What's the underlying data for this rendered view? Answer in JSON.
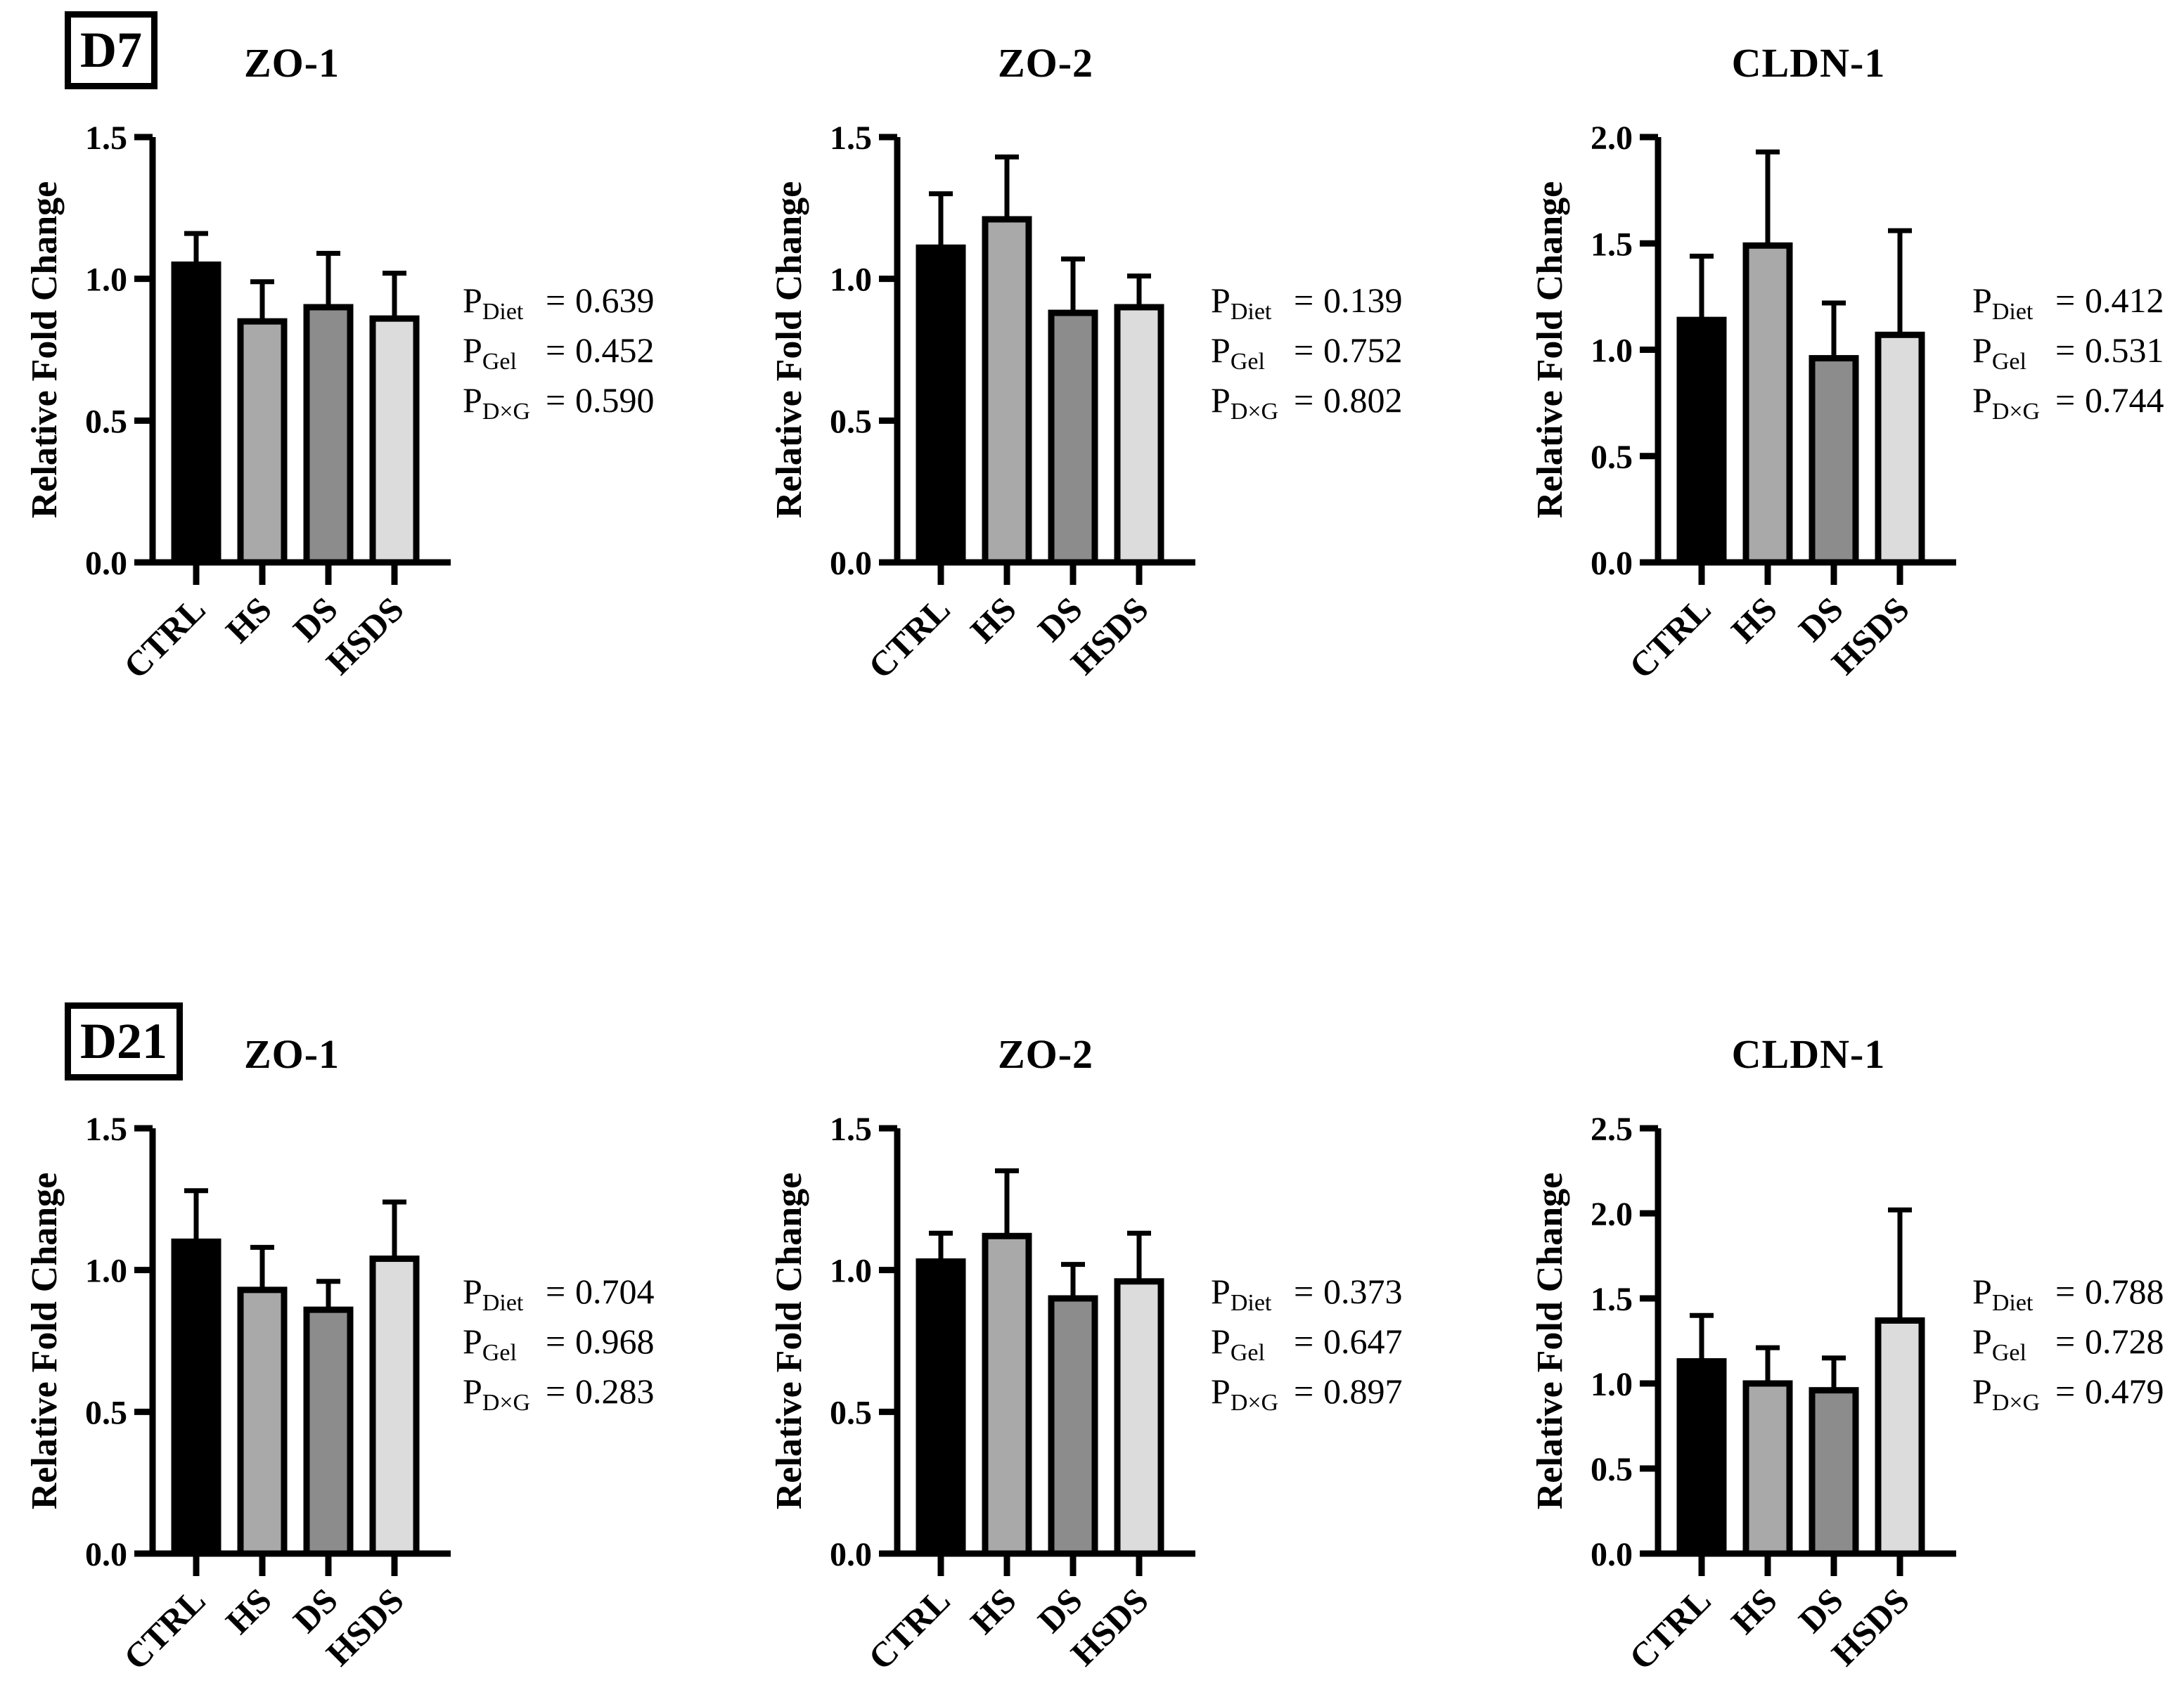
{
  "figure": {
    "background": "#ffffff",
    "text_color": "#000000",
    "p_symbol": "P",
    "p_eq": "=",
    "p_subscripts": {
      "diet": "Diet",
      "gel": "Gel",
      "dxg": "D×G"
    },
    "rows": [
      {
        "day": "D7"
      },
      {
        "day": "D21"
      }
    ],
    "bar_colors": [
      "#000000",
      "#a9a9a9",
      "#8c8c8c",
      "#dcdcdc"
    ]
  },
  "chart_data": [
    {
      "type": "bar",
      "panel": "D7",
      "title": "ZO-1",
      "ylabel": "Relative Fold Change",
      "categories": [
        "CTRL",
        "HS",
        "DS",
        "HSDS"
      ],
      "values": [
        1.05,
        0.85,
        0.9,
        0.86
      ],
      "errors_up": [
        0.11,
        0.14,
        0.19,
        0.16
      ],
      "ylim": [
        0,
        1.5
      ],
      "yticks": [
        0,
        0.5,
        1,
        1.5
      ],
      "legend": "none",
      "grid": false,
      "p_values": {
        "diet": "0.639",
        "gel": "0.452",
        "dxg": "0.590"
      }
    },
    {
      "type": "bar",
      "panel": "D7",
      "title": "ZO-2",
      "ylabel": "Relative Fold Change",
      "categories": [
        "CTRL",
        "HS",
        "DS",
        "HSDS"
      ],
      "values": [
        1.11,
        1.21,
        0.88,
        0.9
      ],
      "errors_up": [
        0.19,
        0.22,
        0.19,
        0.11
      ],
      "ylim": [
        0,
        1.5
      ],
      "yticks": [
        0,
        0.5,
        1,
        1.5
      ],
      "legend": "none",
      "grid": false,
      "p_values": {
        "diet": "0.139",
        "gel": "0.752",
        "dxg": "0.802"
      }
    },
    {
      "type": "bar",
      "panel": "D7",
      "title": "CLDN-1",
      "ylabel": "Relative Fold Change",
      "categories": [
        "CTRL",
        "HS",
        "DS",
        "HSDS"
      ],
      "values": [
        1.14,
        1.49,
        0.96,
        1.07
      ],
      "errors_up": [
        0.3,
        0.44,
        0.26,
        0.49
      ],
      "ylim": [
        0,
        2
      ],
      "yticks": [
        0,
        0.5,
        1,
        1.5,
        2
      ],
      "legend": "none",
      "grid": false,
      "p_values": {
        "diet": "0.412",
        "gel": "0.531",
        "dxg": "0.744"
      }
    },
    {
      "type": "bar",
      "panel": "D21",
      "title": "ZO-1",
      "ylabel": "Relative Fold Change",
      "categories": [
        "CTRL",
        "HS",
        "DS",
        "HSDS"
      ],
      "values": [
        1.1,
        0.93,
        0.86,
        1.04
      ],
      "errors_up": [
        0.18,
        0.15,
        0.1,
        0.2
      ],
      "ylim": [
        0,
        1.5
      ],
      "yticks": [
        0,
        0.5,
        1,
        1.5
      ],
      "legend": "none",
      "grid": false,
      "p_values": {
        "diet": "0.704",
        "gel": "0.968",
        "dxg": "0.283"
      }
    },
    {
      "type": "bar",
      "panel": "D21",
      "title": "ZO-2",
      "ylabel": "Relative Fold Change",
      "categories": [
        "CTRL",
        "HS",
        "DS",
        "HSDS"
      ],
      "values": [
        1.03,
        1.12,
        0.9,
        0.96
      ],
      "errors_up": [
        0.1,
        0.23,
        0.12,
        0.17
      ],
      "ylim": [
        0,
        1.5
      ],
      "yticks": [
        0,
        0.5,
        1,
        1.5
      ],
      "legend": "none",
      "grid": false,
      "p_values": {
        "diet": "0.373",
        "gel": "0.647",
        "dxg": "0.897"
      }
    },
    {
      "type": "bar",
      "panel": "D21",
      "title": "CLDN-1",
      "ylabel": "Relative Fold Change",
      "categories": [
        "CTRL",
        "HS",
        "DS",
        "HSDS"
      ],
      "values": [
        1.13,
        1.0,
        0.96,
        1.37
      ],
      "errors_up": [
        0.27,
        0.21,
        0.19,
        0.65
      ],
      "ylim": [
        0,
        2.5
      ],
      "yticks": [
        0,
        0.5,
        1,
        1.5,
        2,
        2.5
      ],
      "legend": "none",
      "grid": false,
      "p_values": {
        "diet": "0.788",
        "gel": "0.728",
        "dxg": "0.479"
      }
    }
  ]
}
